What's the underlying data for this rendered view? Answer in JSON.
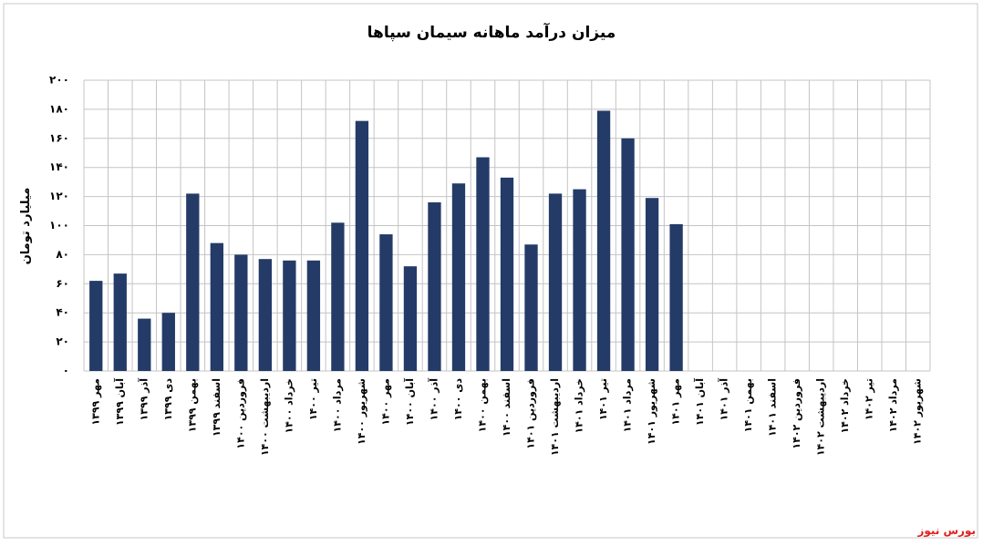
{
  "chart_data": {
    "type": "bar",
    "title": "میزان درآمد ماهانه سیمان سپاها",
    "y_axis_label": "میلیارد تومان",
    "source": "بورس نیوز",
    "color": "#243b68",
    "grid": true,
    "categories": [
      "مهر ۱۳۹۹",
      "آبان ۱۳۹۹",
      "آذر ۱۳۹۹",
      "دی ۱۳۹۹",
      "بهمن ۱۳۹۹",
      "اسفند ۱۳۹۹",
      "فروردین ۱۴۰۰",
      "اردیبهشت ۱۴۰۰",
      "خرداد ۱۴۰۰",
      "تیر ۱۴۰۰",
      "مرداد ۱۴۰۰",
      "شهریور ۱۴۰۰",
      "مهر ۱۴۰۰",
      "آبان ۱۴۰۰",
      "آذر ۱۴۰۰",
      "دی ۱۴۰۰",
      "بهمن ۱۴۰۰",
      "اسفند ۱۴۰۰",
      "فروردین ۱۴۰۱",
      "اردیبهشت ۱۴۰۱",
      "خرداد ۱۴۰۱",
      "تیر ۱۴۰۱",
      "مرداد ۱۴۰۱",
      "شهریور ۱۴۰۱",
      "مهر ۱۴۰۱",
      "آبان ۱۴۰۱",
      "آذر ۱۴۰۱",
      "بهمن ۱۴۰۱",
      "اسفند ۱۴۰۱",
      "فروردین ۱۴۰۲",
      "اردیبهشت ۱۴۰۲",
      "خرداد ۱۴۰۲",
      "تیر ۱۴۰۲",
      "مرداد ۱۴۰۲",
      "شهریور ۱۴۰۲"
    ],
    "values": [
      62,
      67,
      36,
      40,
      122,
      88,
      80,
      77,
      76,
      76,
      102,
      172,
      94,
      72,
      116,
      129,
      147,
      133,
      87,
      122,
      125,
      179,
      160,
      119,
      101,
      null,
      null,
      null,
      null,
      null,
      null,
      null,
      null,
      null,
      null
    ],
    "ylim": [
      0,
      200
    ],
    "yticks": [
      {
        "value": 0,
        "label": "۰"
      },
      {
        "value": 20,
        "label": "۲۰"
      },
      {
        "value": 40,
        "label": "۴۰"
      },
      {
        "value": 60,
        "label": "۶۰"
      },
      {
        "value": 80,
        "label": "۸۰"
      },
      {
        "value": 100,
        "label": "۱۰۰"
      },
      {
        "value": 120,
        "label": "۱۲۰"
      },
      {
        "value": 140,
        "label": "۱۴۰"
      },
      {
        "value": 160,
        "label": "۱۶۰"
      },
      {
        "value": 180,
        "label": "۱۸۰"
      },
      {
        "value": 200,
        "label": "۲۰۰"
      }
    ]
  }
}
